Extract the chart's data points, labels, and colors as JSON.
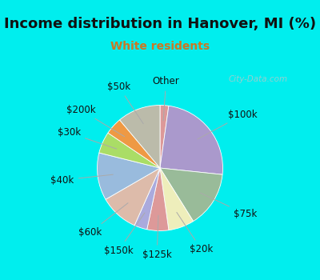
{
  "title": "Income distribution in Hanover, MI (%)",
  "subtitle": "White residents",
  "title_color": "#111111",
  "subtitle_color": "#cc7722",
  "bg_cyan": "#00eeee",
  "bg_chart": "#e0f5ee",
  "slices": [
    {
      "label": "Other",
      "value": 2,
      "color": "#dd9999"
    },
    {
      "label": "$100k",
      "value": 22,
      "color": "#aa99cc"
    },
    {
      "label": "$75k",
      "value": 13,
      "color": "#99bb99"
    },
    {
      "label": "$20k",
      "value": 6,
      "color": "#eeeebb"
    },
    {
      "label": "$125k",
      "value": 5,
      "color": "#dd9999"
    },
    {
      "label": "$150k",
      "value": 3,
      "color": "#aaaadd"
    },
    {
      "label": "$60k",
      "value": 9,
      "color": "#ddbbaa"
    },
    {
      "label": "$40k",
      "value": 11,
      "color": "#99bbdd"
    },
    {
      "label": "$30k",
      "value": 5,
      "color": "#aadd66"
    },
    {
      "label": "$200k",
      "value": 4,
      "color": "#ee9944"
    },
    {
      "label": "$50k",
      "value": 10,
      "color": "#bbbbaa"
    }
  ],
  "start_angle": 90,
  "title_fontsize": 13,
  "subtitle_fontsize": 10,
  "label_fontsize": 8.5,
  "watermark": "City-Data.com",
  "watermark_color": "#aacccc",
  "line_color": "#aaaaaa",
  "label_color": "#111111"
}
